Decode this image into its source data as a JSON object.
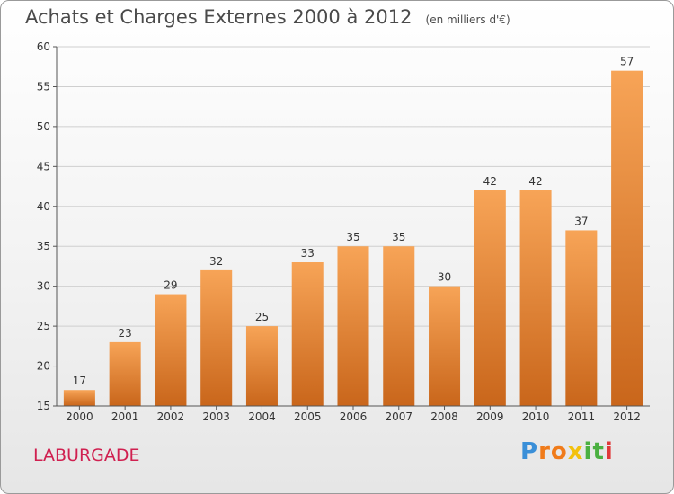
{
  "commune": "LABURGADE",
  "brand": {
    "letters": [
      {
        "ch": "P",
        "color": "#3a8fd8"
      },
      {
        "ch": "r",
        "color": "#f07b1a"
      },
      {
        "ch": "o",
        "color": "#f07b1a"
      },
      {
        "ch": "x",
        "color": "#f3c10d"
      },
      {
        "ch": "i",
        "color": "#4bb041"
      },
      {
        "ch": "t",
        "color": "#4bb041"
      },
      {
        "ch": "i",
        "color": "#e03a3a"
      }
    ]
  },
  "colors": {
    "bar_top": "#f7a457",
    "bar_bottom": "#c9661b",
    "grid": "#cfcfcf",
    "axis": "#555555",
    "text": "#333333"
  },
  "chart_data": {
    "type": "bar",
    "title": "Achats et Charges Externes 2000 à 2012",
    "unit": "(en milliers d'€)",
    "categories": [
      "2000",
      "2001",
      "2002",
      "2003",
      "2004",
      "2005",
      "2006",
      "2007",
      "2008",
      "2009",
      "2010",
      "2011",
      "2012"
    ],
    "values": [
      17,
      23,
      29,
      32,
      25,
      33,
      35,
      35,
      30,
      42,
      42,
      37,
      57
    ],
    "ylim": [
      15,
      60
    ],
    "yticks": [
      15,
      20,
      25,
      30,
      35,
      40,
      45,
      50,
      55,
      60
    ],
    "grid": true,
    "data_labels": true
  }
}
